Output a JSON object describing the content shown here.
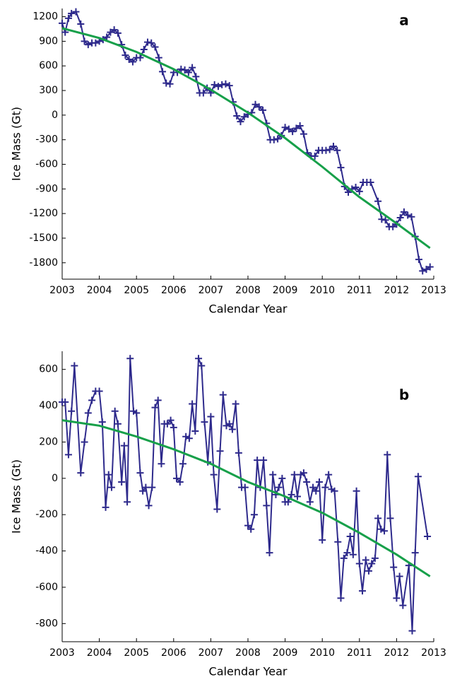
{
  "chart_data": [
    {
      "type": "line",
      "annotation": "a",
      "xlabel": "Calendar Year",
      "ylabel": "Ice Mass (Gt)",
      "xlim": [
        2003,
        2013
      ],
      "xticks": [
        2003,
        2004,
        2005,
        2006,
        2007,
        2008,
        2009,
        2010,
        2011,
        2012,
        2013
      ],
      "ylim": [
        -2000,
        1300
      ],
      "yticks": [
        1200,
        900,
        600,
        300,
        0,
        -300,
        -600,
        -900,
        -1200,
        -1500,
        -1800
      ],
      "series": [
        {
          "color": "#2e2a8c",
          "marker": "+",
          "x": [
            2003.0,
            2003.08,
            2003.17,
            2003.25,
            2003.37,
            2003.5,
            2003.6,
            2003.7,
            2003.8,
            2003.9,
            2004.0,
            2004.1,
            2004.2,
            2004.3,
            2004.4,
            2004.5,
            2004.6,
            2004.7,
            2004.8,
            2004.9,
            2005.0,
            2005.1,
            2005.2,
            2005.3,
            2005.4,
            2005.5,
            2005.6,
            2005.7,
            2005.8,
            2005.9,
            2006.0,
            2006.1,
            2006.2,
            2006.3,
            2006.4,
            2006.5,
            2006.6,
            2006.7,
            2006.8,
            2006.9,
            2007.0,
            2007.1,
            2007.2,
            2007.3,
            2007.4,
            2007.5,
            2007.6,
            2007.7,
            2007.8,
            2007.9,
            2008.0,
            2008.1,
            2008.2,
            2008.3,
            2008.4,
            2008.5,
            2008.6,
            2008.7,
            2008.8,
            2008.9,
            2009.0,
            2009.1,
            2009.2,
            2009.3,
            2009.4,
            2009.5,
            2009.6,
            2009.7,
            2009.8,
            2009.9,
            2010.0,
            2010.1,
            2010.2,
            2010.3,
            2010.4,
            2010.5,
            2010.6,
            2010.7,
            2010.8,
            2010.9,
            2011.0,
            2011.1,
            2011.2,
            2011.3,
            2011.5,
            2011.6,
            2011.7,
            2011.8,
            2011.9,
            2012.0,
            2012.1,
            2012.2,
            2012.3,
            2012.4,
            2012.5,
            2012.6,
            2012.7,
            2012.8,
            2012.9
          ],
          "values": [
            1120,
            1010,
            1180,
            1240,
            1260,
            1110,
            900,
            860,
            880,
            880,
            900,
            920,
            950,
            1010,
            1040,
            1000,
            860,
            730,
            680,
            650,
            700,
            700,
            800,
            890,
            880,
            830,
            700,
            530,
            390,
            380,
            520,
            520,
            560,
            550,
            520,
            580,
            470,
            270,
            270,
            330,
            270,
            370,
            350,
            370,
            380,
            360,
            160,
            -10,
            -80,
            -20,
            10,
            30,
            130,
            100,
            60,
            -100,
            -300,
            -300,
            -290,
            -250,
            -150,
            -170,
            -200,
            -160,
            -130,
            -230,
            -460,
            -500,
            -500,
            -430,
            -430,
            -430,
            -420,
            -380,
            -430,
            -640,
            -870,
            -940,
            -900,
            -880,
            -930,
            -820,
            -820,
            -820,
            -1050,
            -1270,
            -1280,
            -1360,
            -1360,
            -1330,
            -1250,
            -1180,
            -1220,
            -1240,
            -1480,
            -1760,
            -1900,
            -1880,
            -1850
          ]
        },
        {
          "color": "#17a04a",
          "x": [
            2003,
            2004,
            2005,
            2006,
            2007,
            2008,
            2009,
            2010,
            2011,
            2012,
            2012.9
          ],
          "values": [
            1060,
            940,
            770,
            560,
            310,
            30,
            -280,
            -630,
            -1000,
            -1320,
            -1620
          ]
        }
      ]
    },
    {
      "type": "line",
      "annotation": "b",
      "xlabel": "Calendar Year",
      "ylabel": "Ice Mass (Gt)",
      "xlim": [
        2003,
        2013
      ],
      "xticks": [
        2003,
        2004,
        2005,
        2006,
        2007,
        2008,
        2009,
        2010,
        2011,
        2012,
        2013
      ],
      "ylim": [
        -900,
        700
      ],
      "yticks": [
        600,
        400,
        200,
        0,
        -200,
        -400,
        -600,
        -800
      ],
      "series": [
        {
          "color": "#2e2a8c",
          "marker": "+",
          "x": [
            2003.0,
            2003.08,
            2003.17,
            2003.25,
            2003.33,
            2003.5,
            2003.6,
            2003.7,
            2003.8,
            2003.9,
            2004.0,
            2004.08,
            2004.17,
            2004.25,
            2004.33,
            2004.42,
            2004.5,
            2004.6,
            2004.67,
            2004.75,
            2004.83,
            2004.92,
            2005.0,
            2005.1,
            2005.17,
            2005.25,
            2005.33,
            2005.42,
            2005.5,
            2005.58,
            2005.67,
            2005.75,
            2005.83,
            2005.92,
            2006.0,
            2006.08,
            2006.17,
            2006.25,
            2006.33,
            2006.42,
            2006.5,
            2006.58,
            2006.67,
            2006.75,
            2006.83,
            2006.92,
            2007.0,
            2007.08,
            2007.17,
            2007.25,
            2007.33,
            2007.42,
            2007.5,
            2007.58,
            2007.67,
            2007.75,
            2007.83,
            2007.92,
            2008.0,
            2008.08,
            2008.17,
            2008.25,
            2008.33,
            2008.42,
            2008.5,
            2008.58,
            2008.67,
            2008.75,
            2008.83,
            2008.92,
            2009.0,
            2009.08,
            2009.17,
            2009.25,
            2009.33,
            2009.42,
            2009.5,
            2009.58,
            2009.67,
            2009.75,
            2009.83,
            2009.92,
            2010.0,
            2010.08,
            2010.17,
            2010.25,
            2010.33,
            2010.42,
            2010.5,
            2010.58,
            2010.67,
            2010.75,
            2010.83,
            2010.92,
            2011.0,
            2011.08,
            2011.17,
            2011.25,
            2011.33,
            2011.42,
            2011.5,
            2011.58,
            2011.67,
            2011.75,
            2011.83,
            2011.92,
            2012.0,
            2012.08,
            2012.17,
            2012.33,
            2012.42,
            2012.5,
            2012.58,
            2012.83
          ],
          "values": [
            420,
            420,
            130,
            370,
            620,
            30,
            200,
            360,
            430,
            480,
            480,
            310,
            -160,
            20,
            -50,
            370,
            300,
            -20,
            180,
            -130,
            660,
            370,
            360,
            30,
            -70,
            -50,
            -150,
            -50,
            390,
            430,
            80,
            300,
            300,
            320,
            280,
            0,
            -20,
            80,
            230,
            220,
            410,
            260,
            660,
            620,
            310,
            90,
            340,
            20,
            -170,
            150,
            460,
            290,
            300,
            270,
            410,
            140,
            -50,
            -50,
            -260,
            -280,
            -200,
            100,
            -50,
            100,
            -150,
            -410,
            20,
            -90,
            -50,
            0,
            -130,
            -130,
            -90,
            20,
            -100,
            20,
            30,
            -20,
            -130,
            -50,
            -70,
            -20,
            -340,
            -50,
            20,
            -60,
            -70,
            -350,
            -660,
            -440,
            -410,
            -320,
            -420,
            -70,
            -470,
            -620,
            -450,
            -510,
            -470,
            -440,
            -220,
            -280,
            -290,
            130,
            -220,
            -490,
            -660,
            -540,
            -700,
            -480,
            -840,
            -410,
            10,
            -320
          ]
        },
        {
          "color": "#17a04a",
          "x": [
            2003,
            2004,
            2005,
            2006,
            2007,
            2008,
            2009,
            2010,
            2011,
            2012,
            2012.9
          ],
          "values": [
            320,
            290,
            230,
            160,
            80,
            -20,
            -100,
            -190,
            -300,
            -420,
            -540
          ]
        }
      ]
    }
  ]
}
